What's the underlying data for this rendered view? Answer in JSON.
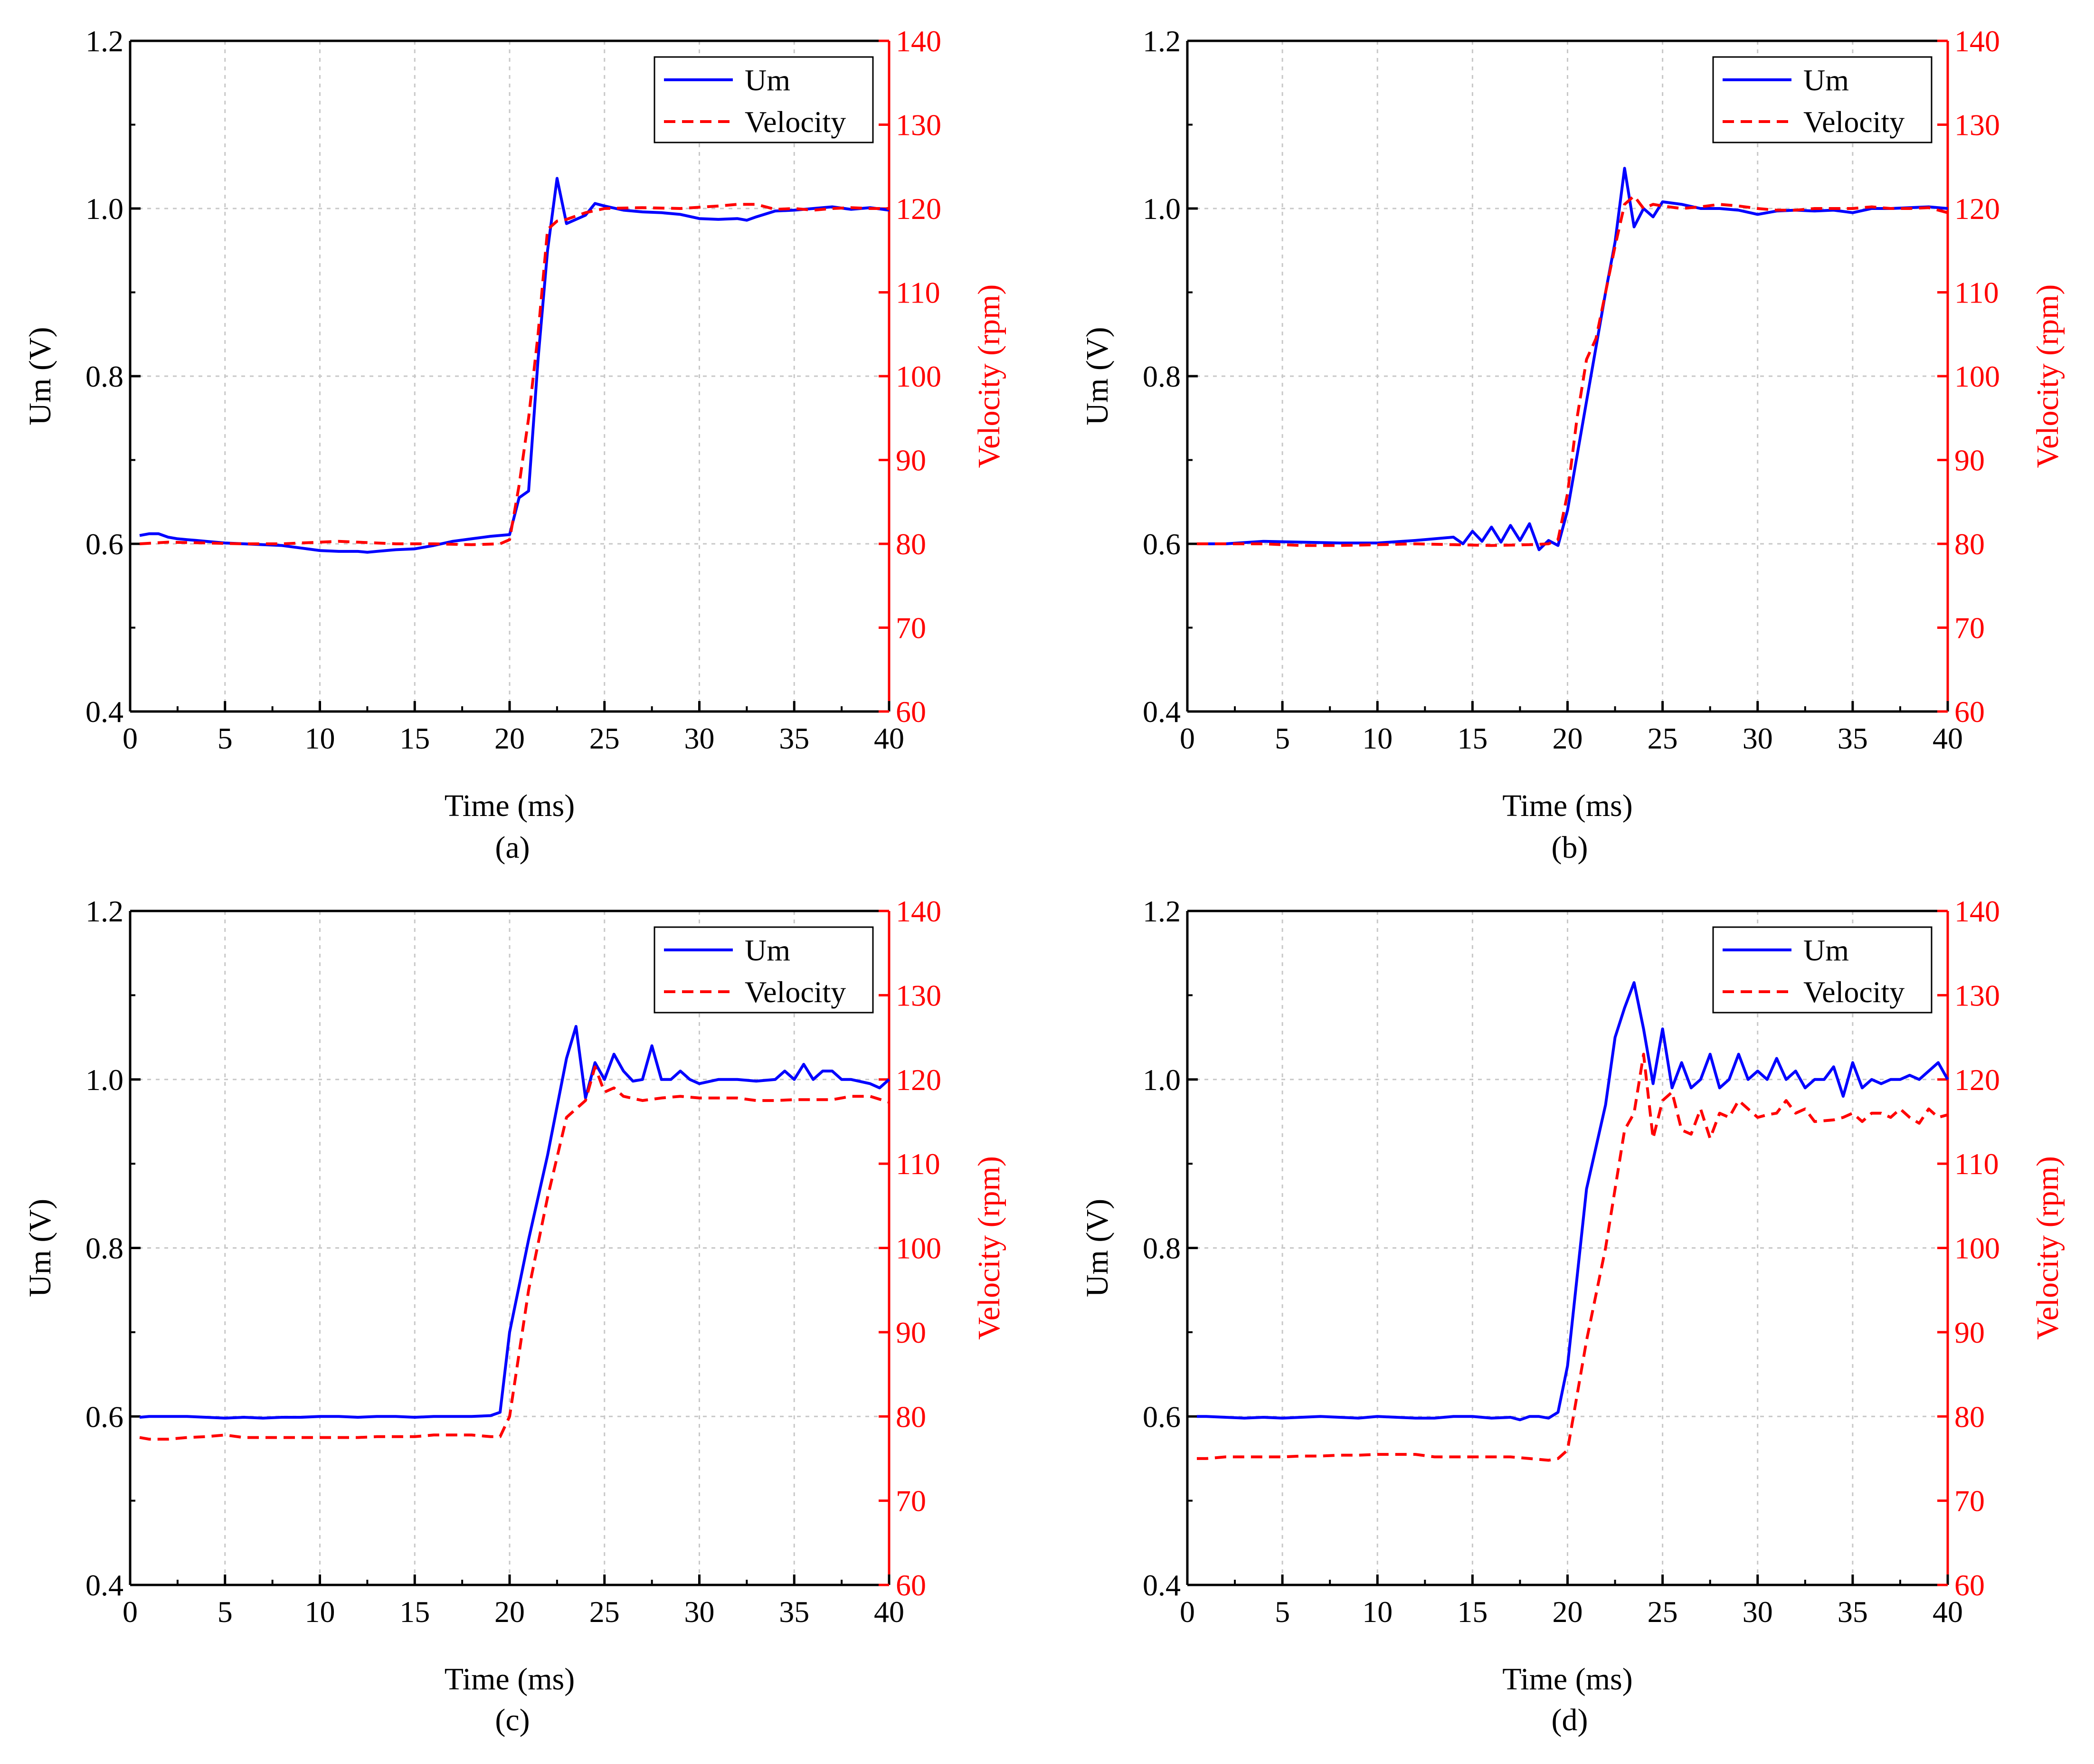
{
  "colors": {
    "um": "#0000ff",
    "velocity": "#ff0000",
    "axis": "#000000",
    "grid": "#c8c8c8"
  },
  "chart_data": [
    {
      "type": "line",
      "caption": "(a)",
      "xlabel": "Time (ms)",
      "ylabel": "Um (V)",
      "y2label": "Velocity (rpm)",
      "xlim": [
        0,
        40
      ],
      "ylim": [
        0.4,
        1.2
      ],
      "y2lim": [
        60,
        140
      ],
      "xticks": [
        "0",
        "5",
        "10",
        "15",
        "20",
        "25",
        "30",
        "35",
        "40"
      ],
      "yticks": [
        "0.4",
        "0.6",
        "0.8",
        "1.0",
        "1.2"
      ],
      "y2ticks": [
        "60",
        "70",
        "80",
        "90",
        "100",
        "110",
        "120",
        "130",
        "140"
      ],
      "grid": true,
      "legend_position": "top-right",
      "series": [
        {
          "name": "Um",
          "axis": "left",
          "style": "solid",
          "x": [
            0.5,
            1,
            1.5,
            2,
            2.5,
            3,
            3.5,
            4,
            5,
            6,
            7,
            8,
            9,
            10,
            11,
            12,
            12.5,
            13,
            14,
            15,
            16,
            17,
            18,
            19,
            20,
            20.5,
            21,
            21.5,
            22,
            22.5,
            23,
            24,
            24.5,
            25,
            26,
            27,
            28,
            29,
            30,
            31,
            32,
            32.5,
            33,
            34,
            35,
            36,
            37,
            38,
            39,
            40
          ],
          "y": [
            0.61,
            0.612,
            0.612,
            0.608,
            0.606,
            0.605,
            0.604,
            0.603,
            0.601,
            0.6,
            0.599,
            0.598,
            0.595,
            0.592,
            0.591,
            0.591,
            0.59,
            0.591,
            0.593,
            0.594,
            0.598,
            0.603,
            0.606,
            0.609,
            0.611,
            0.655,
            0.663,
            0.82,
            0.95,
            1.036,
            0.982,
            0.992,
            1.006,
            1.003,
            0.998,
            0.996,
            0.995,
            0.993,
            0.988,
            0.987,
            0.988,
            0.986,
            0.99,
            0.997,
            0.998,
            1.0,
            1.002,
            0.999,
            1.001,
            0.998
          ]
        },
        {
          "name": "Velocity",
          "axis": "right",
          "style": "dashed",
          "x": [
            0.5,
            2,
            4,
            6,
            8,
            10,
            11,
            12,
            14,
            16,
            18,
            19.5,
            20,
            20.5,
            21,
            21.5,
            22,
            22.5,
            23,
            24,
            25,
            27,
            29,
            31,
            32,
            33,
            34,
            35,
            36,
            37,
            38,
            39,
            40
          ],
          "y": [
            80.0,
            80.2,
            80.1,
            80.0,
            80.0,
            80.2,
            80.3,
            80.2,
            80.0,
            80.0,
            79.9,
            80.0,
            80.5,
            87.0,
            95.0,
            105.0,
            117.5,
            118.5,
            118.7,
            119.5,
            120.0,
            120.1,
            120.0,
            120.3,
            120.5,
            120.5,
            119.9,
            120.0,
            119.8,
            120.0,
            120.1,
            120.0,
            120.0
          ]
        }
      ]
    },
    {
      "type": "line",
      "caption": "(b)",
      "xlabel": "Time (ms)",
      "ylabel": "Um (V)",
      "y2label": "Velocity (rpm)",
      "xlim": [
        0,
        40
      ],
      "ylim": [
        0.4,
        1.2
      ],
      "y2lim": [
        60,
        140
      ],
      "xticks": [
        "0",
        "5",
        "10",
        "15",
        "20",
        "25",
        "30",
        "35",
        "40"
      ],
      "yticks": [
        "0.4",
        "0.6",
        "0.8",
        "1.0",
        "1.2"
      ],
      "y2ticks": [
        "60",
        "70",
        "80",
        "90",
        "100",
        "110",
        "120",
        "130",
        "140"
      ],
      "grid": true,
      "legend_position": "top-right",
      "series": [
        {
          "name": "Um",
          "axis": "left",
          "style": "solid",
          "x": [
            0.5,
            2,
            4,
            6,
            8,
            10,
            12,
            14,
            14.5,
            15,
            15.5,
            16,
            16.5,
            17,
            17.5,
            18,
            18.5,
            19,
            19.5,
            20,
            21,
            22,
            22.5,
            23,
            23.5,
            24,
            24.5,
            25,
            26,
            27,
            28,
            29,
            30,
            31,
            32,
            33,
            34,
            35,
            36,
            37,
            38,
            39,
            40
          ],
          "y": [
            0.6,
            0.6,
            0.603,
            0.602,
            0.601,
            0.601,
            0.604,
            0.608,
            0.6,
            0.615,
            0.603,
            0.62,
            0.602,
            0.622,
            0.604,
            0.624,
            0.593,
            0.604,
            0.598,
            0.64,
            0.77,
            0.9,
            0.96,
            1.048,
            0.978,
            1.0,
            0.99,
            1.008,
            1.005,
            1.0,
            1.0,
            0.998,
            0.993,
            0.997,
            0.998,
            0.997,
            0.998,
            0.995,
            1.0,
            1.0,
            1.001,
            1.002,
            1.0
          ]
        },
        {
          "name": "Velocity",
          "axis": "right",
          "style": "dashed",
          "x": [
            0.5,
            2,
            4,
            6,
            8,
            10,
            12,
            14,
            16,
            18,
            19,
            19.5,
            20,
            20.5,
            21,
            21.5,
            22,
            22.5,
            23,
            23.5,
            24,
            24.5,
            25,
            26,
            27,
            28,
            29,
            30,
            31,
            32,
            33,
            34,
            35,
            36,
            37,
            38,
            39,
            40
          ],
          "y": [
            80.0,
            80.0,
            80.0,
            79.8,
            79.8,
            79.9,
            80.0,
            79.9,
            79.8,
            79.9,
            80.0,
            80.5,
            86.0,
            95.0,
            102.0,
            104.5,
            110.0,
            115.5,
            120.5,
            121.5,
            120.0,
            120.5,
            120.3,
            120.0,
            120.2,
            120.5,
            120.3,
            120.0,
            119.8,
            119.8,
            120.0,
            120.0,
            120.0,
            120.2,
            120.0,
            120.0,
            120.1,
            119.5
          ]
        }
      ]
    },
    {
      "type": "line",
      "caption": "(c)",
      "xlabel": "Time (ms)",
      "ylabel": "Um (V)",
      "y2label": "Velocity (rpm)",
      "xlim": [
        0,
        40
      ],
      "ylim": [
        0.4,
        1.2
      ],
      "y2lim": [
        60,
        140
      ],
      "xticks": [
        "0",
        "5",
        "10",
        "15",
        "20",
        "25",
        "30",
        "35",
        "40"
      ],
      "yticks": [
        "0.4",
        "0.6",
        "0.8",
        "1.0",
        "1.2"
      ],
      "y2ticks": [
        "60",
        "70",
        "80",
        "90",
        "100",
        "110",
        "120",
        "130",
        "140"
      ],
      "grid": true,
      "legend_position": "top-right",
      "series": [
        {
          "name": "Um",
          "axis": "left",
          "style": "solid",
          "x": [
            0.5,
            1,
            2,
            3,
            4,
            5,
            6,
            7,
            8,
            9,
            10,
            11,
            12,
            13,
            14,
            15,
            16,
            17,
            18,
            19,
            19.5,
            20,
            21,
            22,
            23,
            23.5,
            24,
            24.5,
            25,
            25.5,
            26,
            26.5,
            27,
            27.5,
            28,
            28.5,
            29,
            29.5,
            30,
            31,
            32,
            33,
            34,
            34.5,
            35,
            35.5,
            36,
            36.5,
            37,
            37.5,
            38,
            39,
            39.5,
            40
          ],
          "y": [
            0.599,
            0.6,
            0.6,
            0.6,
            0.599,
            0.598,
            0.599,
            0.598,
            0.599,
            0.599,
            0.6,
            0.6,
            0.599,
            0.6,
            0.6,
            0.599,
            0.6,
            0.6,
            0.6,
            0.601,
            0.605,
            0.7,
            0.81,
            0.91,
            1.025,
            1.063,
            0.978,
            1.02,
            1.0,
            1.03,
            1.01,
            0.998,
            1.0,
            1.04,
            1.0,
            1.0,
            1.01,
            1.0,
            0.995,
            1.0,
            1.0,
            0.998,
            1.0,
            1.01,
            1.0,
            1.018,
            1.0,
            1.01,
            1.01,
            1.0,
            1.0,
            0.995,
            0.99,
            1.0
          ]
        },
        {
          "name": "Velocity",
          "axis": "right",
          "style": "dashed",
          "x": [
            0.5,
            1,
            2,
            3,
            4,
            5,
            6,
            7,
            8,
            9,
            10,
            11,
            12,
            13,
            14,
            15,
            16,
            17,
            18,
            19,
            19.5,
            20,
            21,
            22,
            23,
            24,
            24.5,
            25,
            25.5,
            26,
            27,
            28,
            29,
            30,
            31,
            32,
            33,
            34,
            35,
            36,
            37,
            38,
            39,
            40
          ],
          "y": [
            77.5,
            77.3,
            77.3,
            77.5,
            77.6,
            77.8,
            77.5,
            77.5,
            77.5,
            77.5,
            77.5,
            77.5,
            77.5,
            77.6,
            77.6,
            77.6,
            77.8,
            77.8,
            77.8,
            77.6,
            77.6,
            80.0,
            95.0,
            106.0,
            115.5,
            117.5,
            121.5,
            118.5,
            119.0,
            118.0,
            117.5,
            117.8,
            118.0,
            117.8,
            117.8,
            117.8,
            117.5,
            117.5,
            117.6,
            117.6,
            117.6,
            118.0,
            118.0,
            117.3
          ]
        }
      ]
    },
    {
      "type": "line",
      "caption": "(d)",
      "xlabel": "Time (ms)",
      "ylabel": "Um (V)",
      "y2label": "Velocity (rpm)",
      "xlim": [
        0,
        40
      ],
      "ylim": [
        0.4,
        1.2
      ],
      "y2lim": [
        60,
        140
      ],
      "xticks": [
        "0",
        "5",
        "10",
        "15",
        "20",
        "25",
        "30",
        "35",
        "40"
      ],
      "yticks": [
        "0.4",
        "0.6",
        "0.8",
        "1.0",
        "1.2"
      ],
      "y2ticks": [
        "60",
        "70",
        "80",
        "90",
        "100",
        "110",
        "120",
        "130",
        "140"
      ],
      "grid": true,
      "legend_position": "top-right",
      "series": [
        {
          "name": "Um",
          "axis": "left",
          "style": "solid",
          "x": [
            0.5,
            1,
            2,
            3,
            4,
            5,
            6,
            7,
            8,
            9,
            10,
            11,
            12,
            13,
            14,
            15,
            16,
            17,
            17.5,
            18,
            18.5,
            19,
            19.5,
            20,
            21,
            22,
            22.5,
            23,
            23.5,
            24,
            24.5,
            25,
            25.5,
            26,
            26.5,
            27,
            27.5,
            28,
            28.5,
            29,
            29.5,
            30,
            30.5,
            31,
            31.5,
            32,
            32.5,
            33,
            33.5,
            34,
            34.5,
            35,
            35.5,
            36,
            36.5,
            37,
            37.5,
            38,
            38.5,
            39,
            39.5,
            40
          ],
          "y": [
            0.6,
            0.6,
            0.599,
            0.598,
            0.599,
            0.598,
            0.599,
            0.6,
            0.599,
            0.598,
            0.6,
            0.599,
            0.598,
            0.598,
            0.6,
            0.6,
            0.598,
            0.599,
            0.596,
            0.6,
            0.6,
            0.598,
            0.605,
            0.66,
            0.87,
            0.97,
            1.05,
            1.085,
            1.115,
            1.06,
            0.995,
            1.06,
            0.99,
            1.02,
            0.99,
            1.0,
            1.03,
            0.99,
            1.0,
            1.03,
            1.0,
            1.01,
            1.0,
            1.025,
            1.0,
            1.01,
            0.99,
            1.0,
            1.0,
            1.015,
            0.98,
            1.02,
            0.99,
            1.0,
            0.995,
            1.0,
            1.0,
            1.005,
            1.0,
            1.01,
            1.02,
            1.0
          ]
        },
        {
          "name": "Velocity",
          "axis": "right",
          "style": "dashed",
          "x": [
            0.5,
            1,
            2,
            3,
            4,
            5,
            6,
            7,
            8,
            9,
            10,
            11,
            12,
            13,
            14,
            15,
            16,
            17,
            18,
            19,
            19.5,
            20,
            21,
            22,
            23,
            23.5,
            24,
            24.5,
            25,
            25.5,
            26,
            26.5,
            27,
            27.5,
            28,
            28.5,
            29,
            29.5,
            30,
            30.5,
            31,
            31.5,
            32,
            32.5,
            33,
            34,
            34.5,
            35,
            35.5,
            36,
            36.5,
            37,
            37.5,
            38,
            38.5,
            39,
            39.5,
            40
          ],
          "y": [
            75.0,
            75.0,
            75.2,
            75.2,
            75.2,
            75.2,
            75.3,
            75.3,
            75.4,
            75.4,
            75.5,
            75.5,
            75.5,
            75.2,
            75.2,
            75.2,
            75.2,
            75.2,
            75.0,
            74.8,
            75.0,
            76.0,
            89.0,
            100.0,
            114.0,
            116.0,
            123.0,
            113.0,
            117.5,
            118.5,
            114.0,
            113.5,
            116.5,
            113.0,
            116.0,
            115.5,
            117.5,
            116.5,
            115.5,
            115.8,
            116.0,
            117.5,
            116.0,
            116.5,
            115.0,
            115.2,
            115.5,
            116.0,
            115.0,
            116.0,
            116.0,
            115.5,
            116.5,
            115.5,
            114.8,
            116.5,
            115.5,
            115.8
          ]
        }
      ]
    }
  ]
}
